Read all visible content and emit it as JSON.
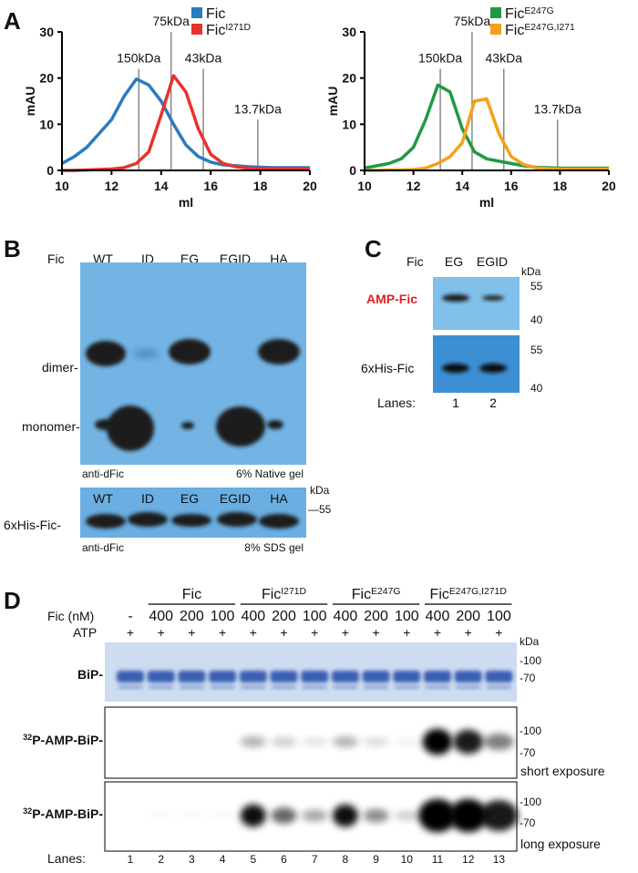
{
  "panel_letters": [
    "A",
    "B",
    "C",
    "D"
  ],
  "chart_data": [
    {
      "type": "line",
      "xlabel": "ml",
      "ylabel": "mAU",
      "xlim": [
        10,
        20
      ],
      "ylim": [
        0,
        30
      ],
      "xticks": [
        10,
        12,
        14,
        16,
        18,
        20
      ],
      "yticks": [
        0,
        10,
        20,
        30
      ],
      "legend": "upper right",
      "markers": [
        {
          "label": "150kDa",
          "x": 13.1
        },
        {
          "label": "75kDa",
          "x": 14.4
        },
        {
          "label": "43kDa",
          "x": 15.7
        },
        {
          "label": "13.7kDa",
          "x": 17.9
        }
      ],
      "x": [
        10,
        10.5,
        11,
        11.5,
        12,
        12.5,
        13,
        13.5,
        14,
        14.5,
        15,
        15.5,
        16,
        16.5,
        17,
        17.5,
        18,
        18.5,
        19,
        19.5,
        20
      ],
      "series": [
        {
          "name": "Fic",
          "superscript": "",
          "color": "#2a7bc0",
          "values": [
            1.5,
            3,
            5,
            8,
            11,
            16,
            19.8,
            18.5,
            15,
            10,
            5.5,
            3,
            1.8,
            1.2,
            1,
            0.8,
            0.7,
            0.6,
            0.6,
            0.6,
            0.6
          ]
        },
        {
          "name": "Fic",
          "superscript": "I271D",
          "color": "#e8322b",
          "values": [
            0,
            0,
            0.1,
            0.2,
            0.3,
            0.6,
            1.5,
            4,
            12,
            20.5,
            17,
            9,
            3.5,
            1.5,
            0.8,
            0.5,
            0.4,
            0.4,
            0.4,
            0.4,
            0.4
          ]
        }
      ]
    },
    {
      "type": "line",
      "xlabel": "ml",
      "ylabel": "mAU",
      "xlim": [
        10,
        20
      ],
      "ylim": [
        0,
        30
      ],
      "xticks": [
        10,
        12,
        14,
        16,
        18,
        20
      ],
      "yticks": [
        0,
        10,
        20,
        30
      ],
      "legend": "upper right",
      "markers": [
        {
          "label": "150kDa",
          "x": 13.1
        },
        {
          "label": "75kDa",
          "x": 14.4
        },
        {
          "label": "43kDa",
          "x": 15.7
        },
        {
          "label": "13.7kDa",
          "x": 17.9
        }
      ],
      "x": [
        10,
        10.5,
        11,
        11.5,
        12,
        12.5,
        13,
        13.5,
        14,
        14.5,
        15,
        15.5,
        16,
        16.5,
        17,
        17.5,
        18,
        18.5,
        19,
        19.5,
        20
      ],
      "series": [
        {
          "name": "Fic",
          "superscript": "E247G",
          "color": "#1e9a45",
          "values": [
            0.5,
            1,
            1.5,
            2.5,
            5,
            11,
            18.5,
            17,
            9,
            4,
            2.5,
            2,
            1.5,
            1,
            0.7,
            0.6,
            0.5,
            0.5,
            0.5,
            0.5,
            0.5
          ]
        },
        {
          "name": "Fic",
          "superscript": "E247G,I271",
          "color": "#f5a01a",
          "values": [
            0,
            0,
            0.1,
            0.1,
            0.2,
            0.5,
            1.5,
            3,
            6,
            15,
            15.5,
            8,
            3,
            1.3,
            0.6,
            0.4,
            0.3,
            0.3,
            0.3,
            0.3,
            0.3
          ]
        }
      ]
    }
  ],
  "panel_b": {
    "fic": "Fic",
    "lanes": [
      "WT",
      "ID",
      "EG",
      "EGID",
      "HA"
    ],
    "dimer": "dimer-",
    "monomer": "monomer-",
    "antibody": "anti-dFic",
    "native_gel": "6% Native gel",
    "sds_lanes": [
      "WT",
      "ID",
      "EG",
      "EGID",
      "HA"
    ],
    "sds_label": "6xHis-Fic-",
    "sds_antibody": "anti-dFic",
    "sds_gel": "8% SDS gel",
    "kda": "kDa",
    "marker": "—55"
  },
  "panel_c": {
    "fic": "Fic",
    "lanes": [
      "EG",
      "EGID"
    ],
    "kda": "kDa",
    "amp_fic": "AMP-Fic",
    "his_fic": "6xHis-Fic",
    "markers_top": [
      "55",
      "40"
    ],
    "markers_bottom": [
      "55",
      "40"
    ],
    "lanes_label": "Lanes:",
    "lane_numbers": [
      1,
      2
    ]
  },
  "panel_d": {
    "groups": [
      {
        "name": "Fic",
        "superscript": ""
      },
      {
        "name": "Fic",
        "superscript": "I271D"
      },
      {
        "name": "Fic",
        "superscript": "E247G"
      },
      {
        "name": "Fic",
        "superscript": "E247G,I271D"
      }
    ],
    "conc_label": "Fic (nM)",
    "conc": [
      "-",
      "400",
      "200",
      "100",
      "400",
      "200",
      "100",
      "400",
      "200",
      "100",
      "400",
      "200",
      "100"
    ],
    "atp_label": "ATP",
    "atp": [
      "+",
      "+",
      "+",
      "+",
      "+",
      "+",
      "+",
      "+",
      "+",
      "+",
      "+",
      "+",
      "+"
    ],
    "kda": "kDa",
    "blots": [
      {
        "label": "BiP-",
        "superscript": "",
        "markers": [
          "-100",
          "-70"
        ],
        "note": ""
      },
      {
        "label": "P-AMP-BiP-",
        "superscript": "32",
        "markers": [
          "-100",
          "-70"
        ],
        "note": "short exposure"
      },
      {
        "label": "P-AMP-BiP-",
        "superscript": "32",
        "markers": [
          "-100",
          "-70"
        ],
        "note": "long exposure"
      }
    ],
    "lanes_label": "Lanes:",
    "lane_numbers": [
      1,
      2,
      3,
      4,
      5,
      6,
      7,
      8,
      9,
      10,
      11,
      12,
      13
    ]
  }
}
